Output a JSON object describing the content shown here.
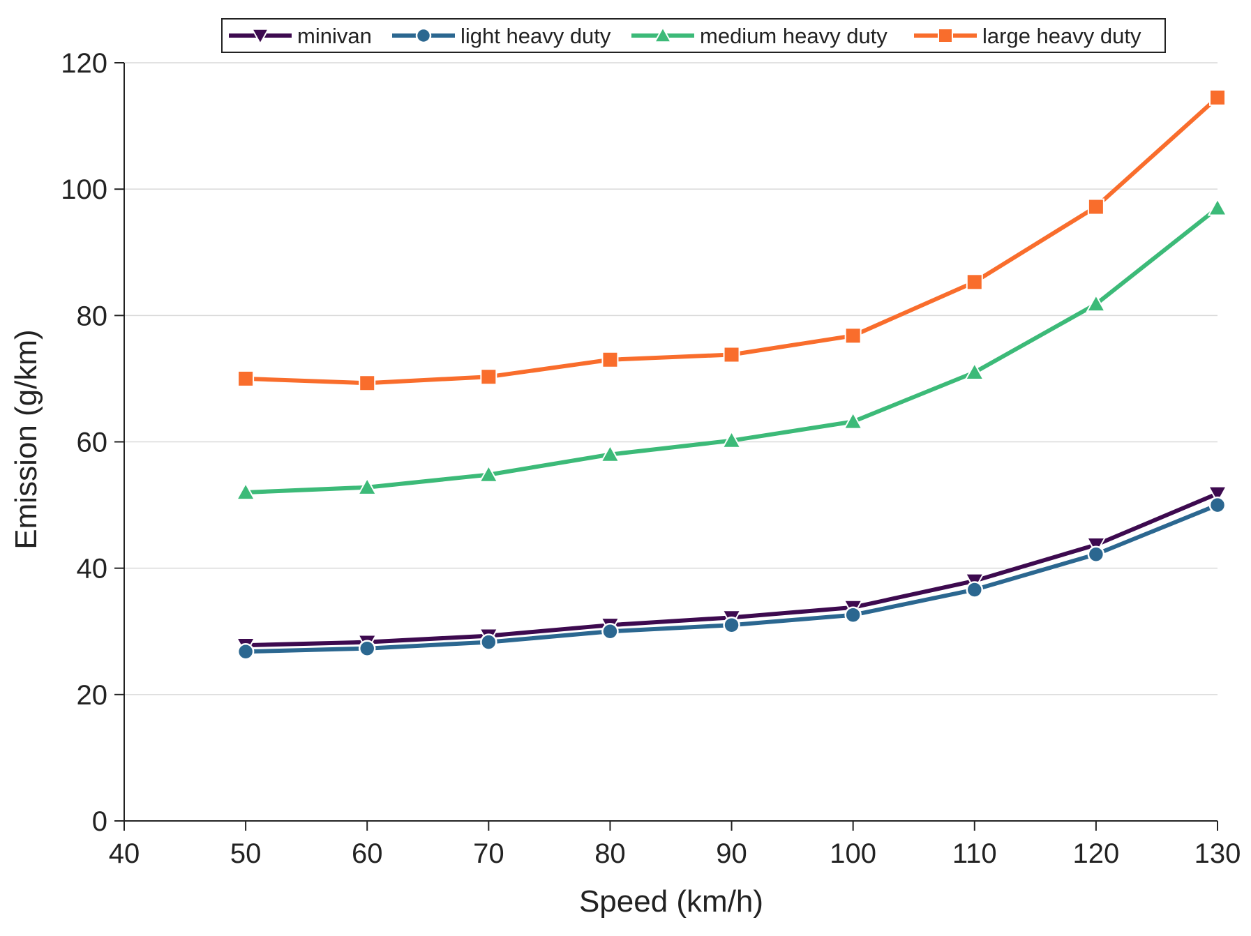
{
  "chart_data": {
    "type": "line",
    "title": "",
    "xlabel": "Speed (km/h)",
    "ylabel": "Emission (g/km)",
    "xlim": [
      40,
      130
    ],
    "ylim": [
      0,
      120
    ],
    "xticks": [
      40,
      50,
      60,
      70,
      80,
      90,
      100,
      110,
      120,
      130
    ],
    "yticks": [
      0,
      20,
      40,
      60,
      80,
      100,
      120
    ],
    "grid": "horizontal",
    "legend_position": "top",
    "x": [
      50,
      60,
      70,
      80,
      90,
      100,
      110,
      120,
      130
    ],
    "series": [
      {
        "name": "minivan",
        "color": "#3d0a4f",
        "marker": "triangle-down",
        "values": [
          27.8,
          28.3,
          29.3,
          31.0,
          32.2,
          33.8,
          38.0,
          43.7,
          51.8
        ]
      },
      {
        "name": "light heavy duty",
        "color": "#2b6790",
        "marker": "circle",
        "values": [
          26.8,
          27.3,
          28.3,
          30.0,
          31.0,
          32.6,
          36.6,
          42.2,
          50.0
        ]
      },
      {
        "name": "medium heavy duty",
        "color": "#3cba78",
        "marker": "triangle-up",
        "values": [
          52.0,
          52.8,
          54.8,
          58.0,
          60.2,
          63.2,
          71.0,
          81.8,
          97.0
        ]
      },
      {
        "name": "large heavy duty",
        "color": "#f96d2c",
        "marker": "square",
        "values": [
          70.0,
          69.3,
          70.3,
          73.0,
          73.8,
          76.8,
          85.3,
          97.2,
          114.5
        ]
      }
    ]
  }
}
